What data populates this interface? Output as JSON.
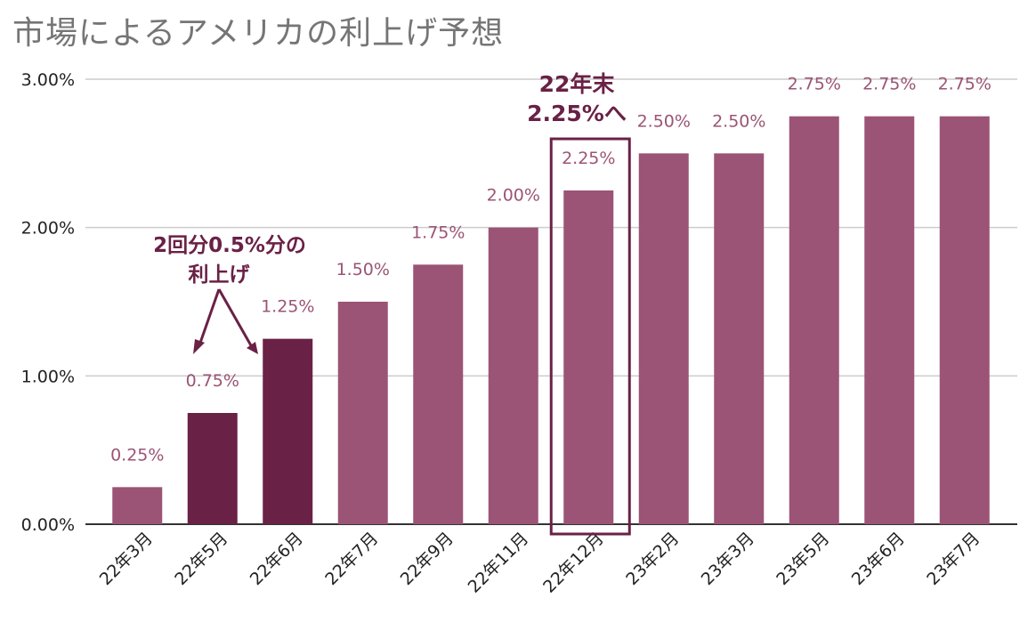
{
  "title": "市場によるアメリカの利上げ予想",
  "chart_data": {
    "type": "bar",
    "title": "市場によるアメリカの利上げ予想",
    "xlabel": "",
    "ylabel": "",
    "ylim": [
      0,
      3
    ],
    "yticks": [
      "0.00%",
      "1.00%",
      "2.00%",
      "3.00%"
    ],
    "categories": [
      "22年3月",
      "22年5月",
      "22年6月",
      "22年7月",
      "22年9月",
      "22年11月",
      "22年12月",
      "23年2月",
      "23年3月",
      "23年5月",
      "23年6月",
      "23年7月"
    ],
    "values": [
      0.25,
      0.75,
      1.25,
      1.5,
      1.75,
      2.0,
      2.25,
      2.5,
      2.5,
      2.75,
      2.75,
      2.75
    ],
    "labels": [
      "0.25%",
      "0.75%",
      "1.25%",
      "1.50%",
      "1.75%",
      "2.00%",
      "2.25%",
      "2.50%",
      "2.50%",
      "2.75%",
      "2.75%",
      "2.75%"
    ],
    "colors": {
      "normal": "#9b5475",
      "highlight": "#6a2146",
      "label": "#9b5475",
      "grid": "#cccccc",
      "axis": "#333333"
    },
    "highlighted": [
      "22年5月",
      "22年6月"
    ],
    "boxed": "22年12月",
    "grid": true
  },
  "annotations": {
    "hike_line1": "2回分0.5%分の",
    "hike_line2": "利上げ",
    "yearend_line1": "22年末",
    "yearend_line2": "2.25%へ"
  }
}
